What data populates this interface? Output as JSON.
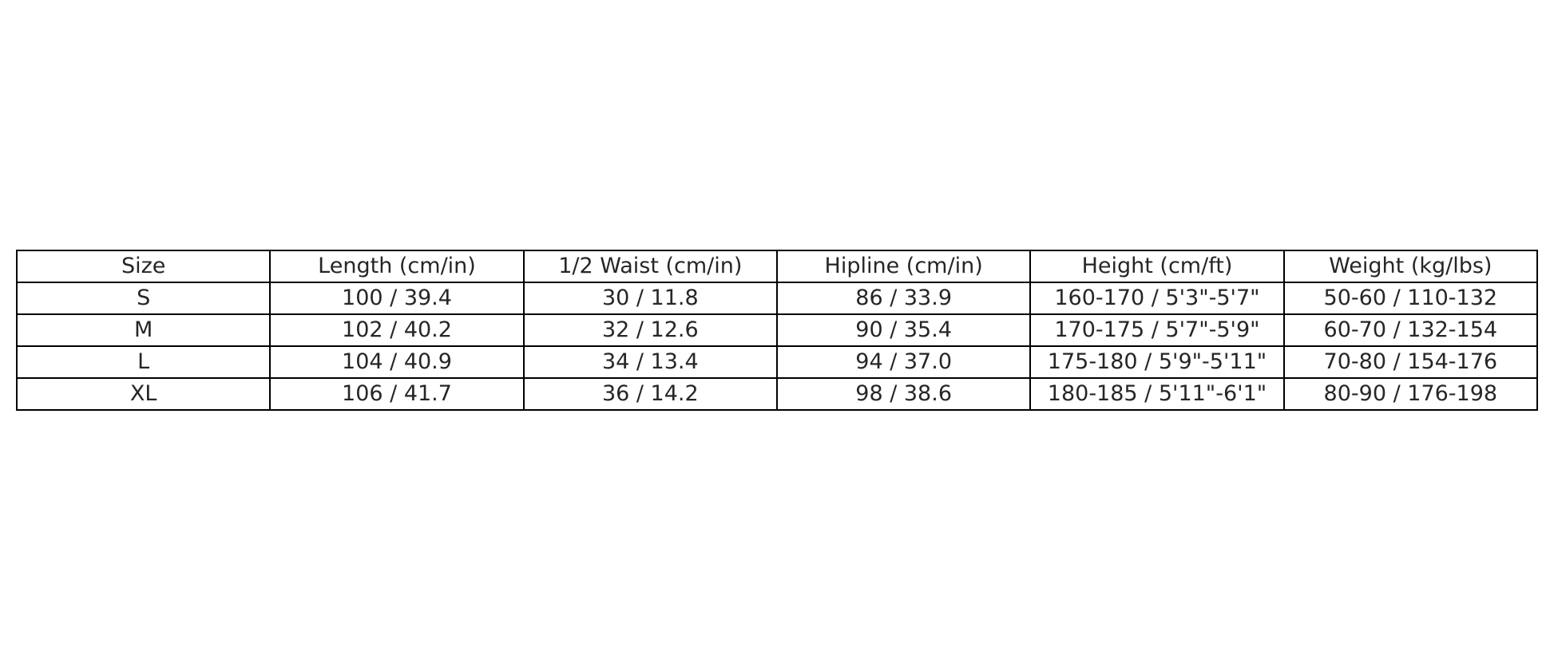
{
  "table": {
    "headers": [
      "Size",
      "Length (cm/in)",
      "1/2 Waist (cm/in)",
      "Hipline (cm/in)",
      "Height (cm/ft)",
      "Weight (kg/lbs)"
    ],
    "rows": [
      [
        "S",
        "100 / 39.4",
        "30 / 11.8",
        "86 / 33.9",
        "160-170 / 5'3\"-5'7\"",
        "50-60 / 110-132"
      ],
      [
        "M",
        "102 / 40.2",
        "32 / 12.6",
        "90 / 35.4",
        "170-175 / 5'7\"-5'9\"",
        "60-70 / 132-154"
      ],
      [
        "L",
        "104 / 40.9",
        "34 / 13.4",
        "94 / 37.0",
        "175-180 / 5'9\"-5'11\"",
        "70-80 / 154-176"
      ],
      [
        "XL",
        "106 / 41.7",
        "36 / 14.2",
        "98 / 38.6",
        "180-185 / 5'11\"-6'1\"",
        "80-90 / 176-198"
      ]
    ]
  }
}
